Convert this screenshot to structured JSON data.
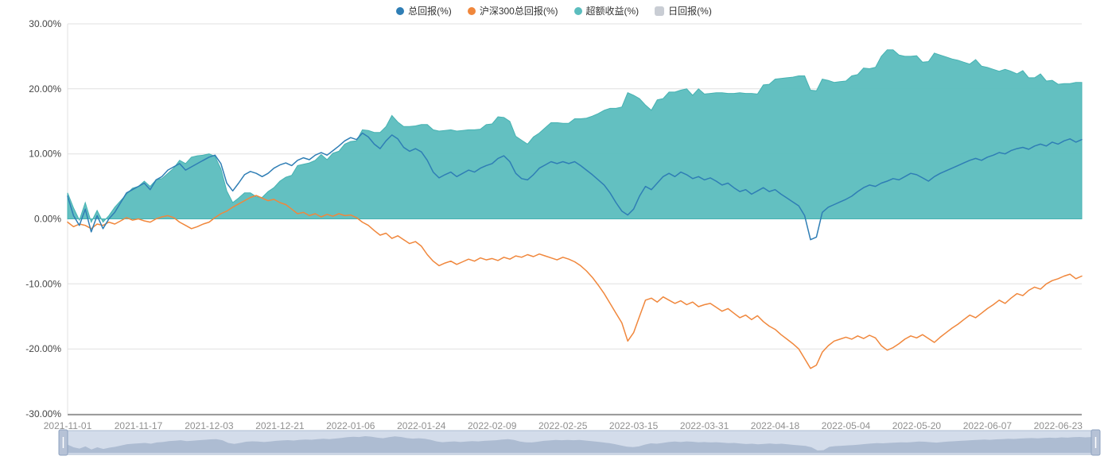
{
  "palette": {
    "background": "#ffffff",
    "grid_line": "#e0e0e0",
    "zero_line": "#cccccc",
    "axis_line": "#4d4d4d",
    "y_label_color": "#464646",
    "x_label_color": "#8f8f8f",
    "legend_text_color": "#333333",
    "datazoom_fill": "#d3dcea",
    "datazoom_border": "#aebdd2",
    "datazoom_silhouette": "#a9b8cf",
    "datazoom_handle": "#b6c2d6",
    "datazoom_handle_border": "#8fa3c0"
  },
  "chart_data": {
    "type": "line",
    "n_points": 173,
    "ylim": [
      -30,
      30
    ],
    "grid": true,
    "legend_position": "top-center",
    "y_axis": {
      "ticks": [
        {
          "label": "30.00%",
          "value": 30
        },
        {
          "label": "20.00%",
          "value": 20
        },
        {
          "label": "10.00%",
          "value": 10
        },
        {
          "label": "0.00%",
          "value": 0
        },
        {
          "label": "-10.00%",
          "value": -10
        },
        {
          "label": "-20.00%",
          "value": -20
        },
        {
          "label": "-30.00%",
          "value": -30
        }
      ]
    },
    "x_axis": {
      "tick_labels": [
        "2021-11-01",
        "2021-11-17",
        "2021-12-03",
        "2021-12-21",
        "2022-01-06",
        "2022-01-24",
        "2022-02-09",
        "2022-02-25",
        "2022-03-15",
        "2022-03-31",
        "2022-04-18",
        "2022-05-04",
        "2022-05-20",
        "2022-06-07",
        "2022-06-23"
      ],
      "tick_indices": [
        0,
        12,
        24,
        36,
        48,
        60,
        72,
        84,
        96,
        108,
        120,
        132,
        144,
        156,
        168
      ]
    },
    "series": [
      {
        "key": "total_return",
        "name": "总回报(%)",
        "type": "line",
        "color": "#2f7eb5",
        "values": [
          3.5,
          0.5,
          -1.0,
          1.5,
          -2.0,
          0.5,
          -1.5,
          0.0,
          1.0,
          2.5,
          4.0,
          4.5,
          5.0,
          5.5,
          4.5,
          6.0,
          6.5,
          7.5,
          8.0,
          8.5,
          7.5,
          8.0,
          8.5,
          9.0,
          9.5,
          9.8,
          8.5,
          5.5,
          4.3,
          5.5,
          6.8,
          7.3,
          7.0,
          6.5,
          7.0,
          7.8,
          8.3,
          8.6,
          8.2,
          9.0,
          9.4,
          9.1,
          9.8,
          10.2,
          9.8,
          10.5,
          11.2,
          12.0,
          12.5,
          12.2,
          13.2,
          12.6,
          11.5,
          10.8,
          12.0,
          12.9,
          12.3,
          11.0,
          10.4,
          10.8,
          10.3,
          9.0,
          7.2,
          6.3,
          6.8,
          7.2,
          6.5,
          7.0,
          7.5,
          7.2,
          7.8,
          8.2,
          8.5,
          9.3,
          9.7,
          8.8,
          7.0,
          6.2,
          6.0,
          6.8,
          7.8,
          8.3,
          8.8,
          8.5,
          8.8,
          8.5,
          8.8,
          8.2,
          7.5,
          6.8,
          6.0,
          5.2,
          4.0,
          2.5,
          1.2,
          0.6,
          1.5,
          3.5,
          5.0,
          4.5,
          5.5,
          6.5,
          7.0,
          6.5,
          7.2,
          6.8,
          6.2,
          6.5,
          6.0,
          6.3,
          5.8,
          5.2,
          5.5,
          4.8,
          4.2,
          4.5,
          3.8,
          4.3,
          4.8,
          4.2,
          4.5,
          3.8,
          3.2,
          2.6,
          2.0,
          0.5,
          -3.2,
          -2.8,
          1.0,
          1.8,
          2.2,
          2.6,
          3.0,
          3.5,
          4.2,
          4.8,
          5.2,
          5.0,
          5.5,
          5.8,
          6.2,
          6.0,
          6.5,
          7.0,
          6.8,
          6.3,
          5.8,
          6.5,
          7.0,
          7.4,
          7.8,
          8.2,
          8.6,
          9.0,
          9.3,
          9.0,
          9.5,
          9.8,
          10.2,
          10.0,
          10.5,
          10.8,
          11.0,
          10.7,
          11.2,
          11.5,
          11.2,
          11.8,
          11.5,
          12.0,
          12.3,
          11.8,
          12.2
        ]
      },
      {
        "key": "csi300_total_return",
        "name": "沪深300总回报(%)",
        "type": "line",
        "color": "#f0873c",
        "values": [
          -0.5,
          -1.2,
          -0.8,
          -1.0,
          -1.5,
          -0.8,
          -1.0,
          -0.5,
          -0.8,
          -0.3,
          0.2,
          -0.2,
          0.0,
          -0.3,
          -0.5,
          0.0,
          0.3,
          0.5,
          0.2,
          -0.5,
          -1.0,
          -1.5,
          -1.2,
          -0.8,
          -0.5,
          0.2,
          0.8,
          1.2,
          1.8,
          2.3,
          2.8,
          3.3,
          3.6,
          3.2,
          2.8,
          3.0,
          2.5,
          2.2,
          1.5,
          0.8,
          1.0,
          0.5,
          0.8,
          0.3,
          0.7,
          0.4,
          0.8,
          0.5,
          0.6,
          0.2,
          -0.5,
          -1.0,
          -1.8,
          -2.5,
          -2.2,
          -3.0,
          -2.6,
          -3.2,
          -3.8,
          -3.5,
          -4.2,
          -5.5,
          -6.5,
          -7.2,
          -6.8,
          -6.5,
          -7.0,
          -6.6,
          -6.2,
          -6.5,
          -6.0,
          -6.3,
          -6.1,
          -6.4,
          -5.9,
          -6.2,
          -5.7,
          -5.9,
          -5.5,
          -5.8,
          -5.4,
          -5.7,
          -6.0,
          -6.3,
          -5.9,
          -6.2,
          -6.6,
          -7.2,
          -8.0,
          -9.0,
          -10.2,
          -11.5,
          -13.0,
          -14.5,
          -16.0,
          -18.8,
          -17.5,
          -15.0,
          -12.5,
          -12.2,
          -12.8,
          -12.0,
          -12.5,
          -13.0,
          -12.6,
          -13.2,
          -12.8,
          -13.5,
          -13.2,
          -13.0,
          -13.6,
          -14.2,
          -13.8,
          -14.5,
          -15.2,
          -14.8,
          -15.5,
          -14.9,
          -15.8,
          -16.5,
          -17.0,
          -17.8,
          -18.5,
          -19.2,
          -20.0,
          -21.5,
          -23.0,
          -22.5,
          -20.5,
          -19.5,
          -18.8,
          -18.5,
          -18.2,
          -18.5,
          -18.0,
          -18.4,
          -17.9,
          -18.3,
          -19.5,
          -20.2,
          -19.8,
          -19.2,
          -18.5,
          -18.0,
          -18.3,
          -17.8,
          -18.4,
          -19.0,
          -18.2,
          -17.5,
          -16.8,
          -16.2,
          -15.5,
          -14.8,
          -15.2,
          -14.5,
          -13.8,
          -13.2,
          -12.5,
          -13.0,
          -12.2,
          -11.5,
          -11.8,
          -11.0,
          -10.5,
          -10.8,
          -10.0,
          -9.5,
          -9.2,
          -8.8,
          -8.5,
          -9.2,
          -8.8
        ]
      },
      {
        "key": "excess_return",
        "name": "超额收益(%)",
        "type": "area",
        "color": "#5bbdbe",
        "line_color": "#46b2b2",
        "baseline": 0,
        "values": [
          4.0,
          1.7,
          -0.2,
          2.5,
          -0.5,
          1.3,
          -0.5,
          0.5,
          1.8,
          2.8,
          3.8,
          4.7,
          5.0,
          5.8,
          5.0,
          6.0,
          6.2,
          7.0,
          7.8,
          9.0,
          8.5,
          9.5,
          9.7,
          9.8,
          10.0,
          9.6,
          7.7,
          4.3,
          2.5,
          3.2,
          4.0,
          4.0,
          3.4,
          3.3,
          4.2,
          4.8,
          5.8,
          6.4,
          6.7,
          8.2,
          8.4,
          8.6,
          9.0,
          9.9,
          9.1,
          10.1,
          10.4,
          11.5,
          11.9,
          12.0,
          13.7,
          13.6,
          13.3,
          13.3,
          14.2,
          15.9,
          14.9,
          14.2,
          14.2,
          14.3,
          14.5,
          14.5,
          13.7,
          13.5,
          13.6,
          13.7,
          13.5,
          13.6,
          13.7,
          13.7,
          13.8,
          14.5,
          14.6,
          15.7,
          15.6,
          15.0,
          12.7,
          12.1,
          11.5,
          12.6,
          13.2,
          14.0,
          14.8,
          14.8,
          14.7,
          14.7,
          15.4,
          15.4,
          15.5,
          15.8,
          16.2,
          16.7,
          17.0,
          17.0,
          17.2,
          19.4,
          19.0,
          18.5,
          17.5,
          16.7,
          18.3,
          18.5,
          19.5,
          19.5,
          19.8,
          20.0,
          19.0,
          20.0,
          19.2,
          19.3,
          19.4,
          19.4,
          19.3,
          19.3,
          19.4,
          19.3,
          19.3,
          19.2,
          20.6,
          20.7,
          21.5,
          21.6,
          21.7,
          21.8,
          22.0,
          22.0,
          19.8,
          19.7,
          21.5,
          21.3,
          21.0,
          21.1,
          21.2,
          22.0,
          22.2,
          23.2,
          23.1,
          23.3,
          25.0,
          26.0,
          26.0,
          25.2,
          25.0,
          25.0,
          25.1,
          24.1,
          24.2,
          25.5,
          25.2,
          24.9,
          24.6,
          24.4,
          24.1,
          23.8,
          24.5,
          23.5,
          23.3,
          23.0,
          22.7,
          23.0,
          22.7,
          22.3,
          22.8,
          21.7,
          21.7,
          22.3,
          21.2,
          21.3,
          20.7,
          20.8,
          20.8,
          21.0,
          21.0
        ]
      },
      {
        "key": "daily_return",
        "name": "日回报(%)",
        "type": "bar",
        "color": "#c9cdd4",
        "visible": false,
        "values": []
      }
    ]
  }
}
